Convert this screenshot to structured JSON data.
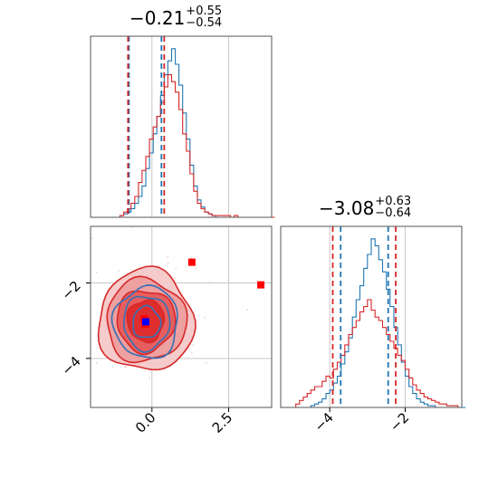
{
  "panel_titles": [
    {
      "value": "−0.21",
      "plus": "+0.55",
      "minus": "−0.54"
    },
    {
      "value": "−3.08",
      "plus": "+0.63",
      "minus": "−0.64"
    }
  ],
  "chart_data": [
    {
      "type": "histogram",
      "title": "−0.21 +0.55 −0.54",
      "panel": "top-left",
      "xlim": [
        -2.0,
        3.9
      ],
      "grid": true,
      "x_ticks": [],
      "bin_edges_start": -2.0,
      "bin_width": 0.12,
      "series": [
        {
          "color": "#1f77b4",
          "counts": [
            0,
            0,
            0,
            0,
            0,
            0,
            0,
            0,
            0.01,
            0.02,
            0.03,
            0.05,
            0.08,
            0.12,
            0.18,
            0.28,
            0.37,
            0.48,
            0.58,
            0.7,
            0.82,
            0.9,
            0.97,
            0.88,
            0.76,
            0.6,
            0.45,
            0.3,
            0.18,
            0.1,
            0.06,
            0.03,
            0.02,
            0.01,
            0,
            0,
            0,
            0,
            0,
            0,
            0,
            0,
            0,
            0,
            0,
            0,
            0,
            0,
            0,
            0
          ]
        },
        {
          "color": "#d62728",
          "counts": [
            0,
            0,
            0,
            0,
            0,
            0,
            0,
            0,
            0.01,
            0.03,
            0.05,
            0.08,
            0.12,
            0.2,
            0.27,
            0.35,
            0.45,
            0.52,
            0.58,
            0.66,
            0.75,
            0.82,
            0.78,
            0.72,
            0.62,
            0.48,
            0.38,
            0.25,
            0.15,
            0.08,
            0.05,
            0.03,
            0.02,
            0.01,
            0.01,
            0.01,
            0.01,
            0.01,
            0,
            0.01,
            0,
            0,
            0,
            0,
            0,
            0,
            0,
            0,
            0,
            0
          ]
        }
      ],
      "quantiles": [
        {
          "color": "#1f77b4",
          "x": [
            -0.75,
            0.31
          ]
        },
        {
          "color": "#d62728",
          "x": [
            -0.78,
            0.4
          ]
        }
      ]
    },
    {
      "type": "contour",
      "panel": "bottom-left",
      "xlim": [
        -2.0,
        3.9
      ],
      "ylim": [
        -5.3,
        -0.5
      ],
      "grid": true,
      "x_ticks": [
        "0.0",
        "2.5"
      ],
      "y_ticks": [
        "−2",
        "−4"
      ],
      "x_tick_values": [
        0.0,
        2.5
      ],
      "y_tick_values": [
        -2,
        -4
      ],
      "series": [
        {
          "color": "#d62728",
          "center": [
            -0.2,
            -3.0
          ],
          "levels_sigma": [
            [
              0.6,
              0.55
            ],
            [
              0.95,
              0.82
            ],
            [
              1.3,
              1.1
            ],
            [
              1.55,
              1.35
            ]
          ]
        },
        {
          "color": "#1f77b4",
          "center": [
            -0.18,
            -3.05
          ],
          "levels_sigma": [
            [
              0.45,
              0.42
            ],
            [
              0.75,
              0.72
            ],
            [
              1.05,
              0.95
            ]
          ]
        }
      ],
      "markers": [
        {
          "color": "#ff0000",
          "points": [
            [
              1.3,
              -1.45
            ],
            [
              3.55,
              -2.05
            ],
            [
              -0.22,
              -3.1
            ],
            [
              -0.25,
              -2.95
            ]
          ]
        },
        {
          "color": "#0000ff",
          "points": [
            [
              -0.2,
              -3.03
            ]
          ]
        }
      ]
    },
    {
      "type": "histogram",
      "title": "−3.08 +0.63 −0.64",
      "panel": "bottom-right",
      "xlim": [
        -5.3,
        -0.5
      ],
      "grid": true,
      "x_ticks": [
        "−4",
        "−2"
      ],
      "x_tick_values": [
        -4,
        -2
      ],
      "bin_edges_start": -5.3,
      "bin_width": 0.1,
      "series": [
        {
          "color": "#1f77b4",
          "counts": [
            0,
            0,
            0,
            0,
            0,
            0,
            0,
            0,
            0.01,
            0.02,
            0.03,
            0.05,
            0.08,
            0.1,
            0.14,
            0.18,
            0.25,
            0.32,
            0.4,
            0.52,
            0.62,
            0.7,
            0.8,
            0.88,
            0.97,
            0.93,
            0.85,
            0.78,
            0.68,
            0.58,
            0.46,
            0.36,
            0.26,
            0.18,
            0.12,
            0.08,
            0.05,
            0.03,
            0.02,
            0.01,
            0.01,
            0,
            0,
            0,
            0,
            0,
            0,
            0,
            0
          ]
        },
        {
          "color": "#d62728",
          "counts": [
            0,
            0,
            0,
            0,
            0.02,
            0.04,
            0.06,
            0.08,
            0.1,
            0.12,
            0.12,
            0.15,
            0.18,
            0.17,
            0.22,
            0.26,
            0.3,
            0.36,
            0.42,
            0.46,
            0.5,
            0.55,
            0.58,
            0.62,
            0.56,
            0.52,
            0.5,
            0.46,
            0.42,
            0.38,
            0.34,
            0.3,
            0.27,
            0.22,
            0.17,
            0.13,
            0.1,
            0.08,
            0.06,
            0.05,
            0.04,
            0.03,
            0.02,
            0.02,
            0.01,
            0.01,
            0.01,
            0
          ]
        }
      ],
      "quantiles": [
        {
          "color": "#1f77b4",
          "x": [
            -3.71,
            -2.45
          ]
        },
        {
          "color": "#d62728",
          "x": [
            -3.92,
            -2.25
          ]
        }
      ]
    }
  ]
}
